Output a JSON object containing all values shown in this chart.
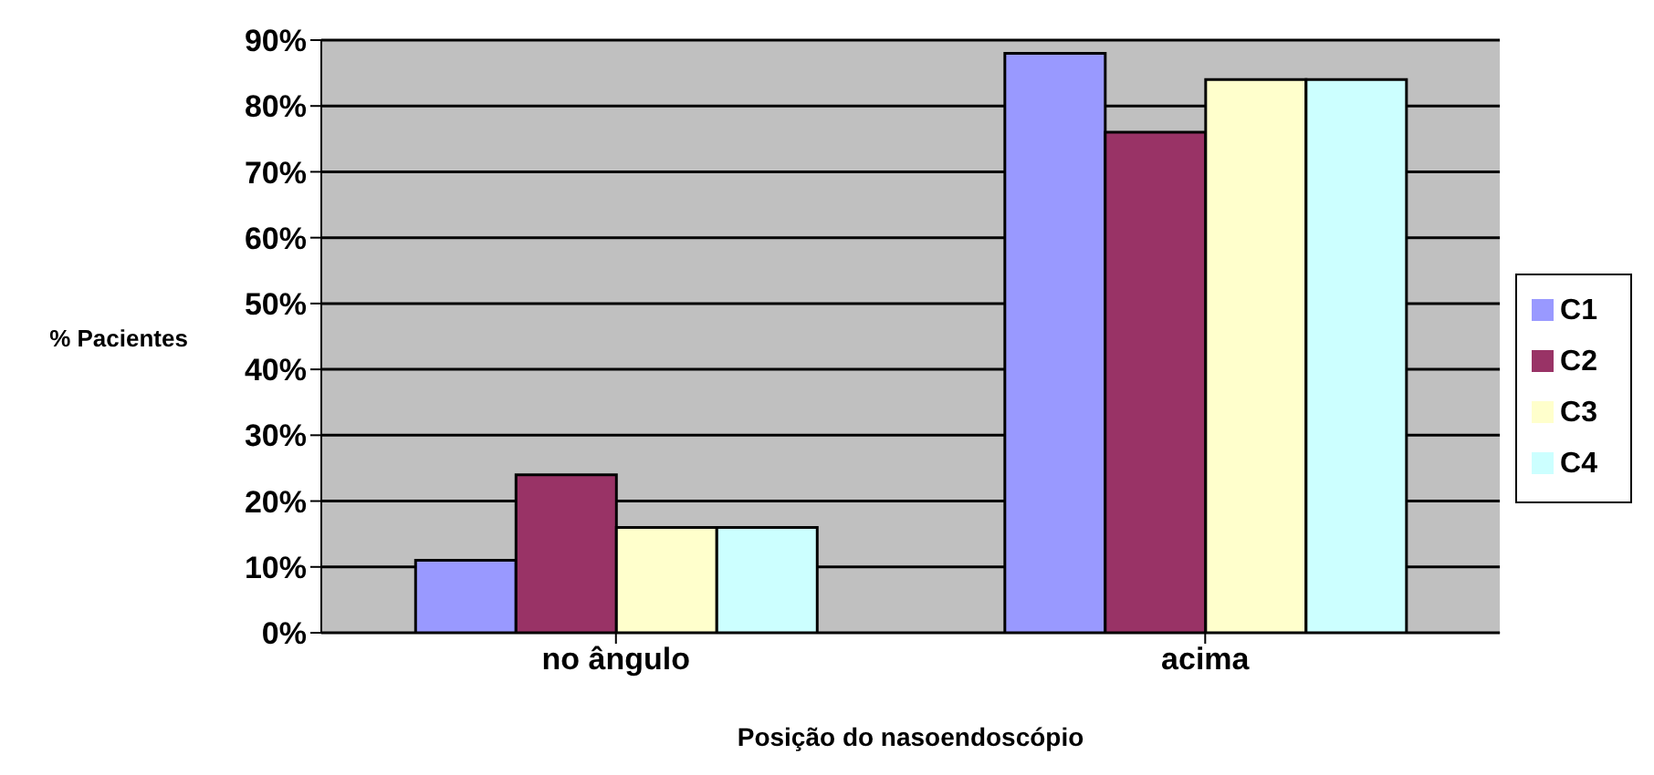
{
  "chart_data": {
    "type": "bar",
    "xlabel": "Posição do nasoendoscópio",
    "ylabel": "% Pacientes",
    "categories": [
      "no ângulo",
      "acima"
    ],
    "series": [
      {
        "name": "C1",
        "color": "#9999ff",
        "values": [
          11,
          88
        ]
      },
      {
        "name": "C2",
        "color": "#993366",
        "values": [
          24,
          76
        ]
      },
      {
        "name": "C3",
        "color": "#ffffcc",
        "values": [
          16,
          84
        ]
      },
      {
        "name": "C4",
        "color": "#ccffff",
        "values": [
          16,
          84
        ]
      }
    ],
    "ylim": [
      0,
      90
    ],
    "yticks": [
      {
        "value": 0,
        "label": "0%"
      },
      {
        "value": 10,
        "label": "10%"
      },
      {
        "value": 20,
        "label": "20%"
      },
      {
        "value": 30,
        "label": "30%"
      },
      {
        "value": 40,
        "label": "40%"
      },
      {
        "value": 50,
        "label": "50%"
      },
      {
        "value": 60,
        "label": "60%"
      },
      {
        "value": 70,
        "label": "70%"
      },
      {
        "value": 80,
        "label": "80%"
      },
      {
        "value": 90,
        "label": "90%"
      }
    ],
    "grid": "y",
    "legend": "right"
  }
}
